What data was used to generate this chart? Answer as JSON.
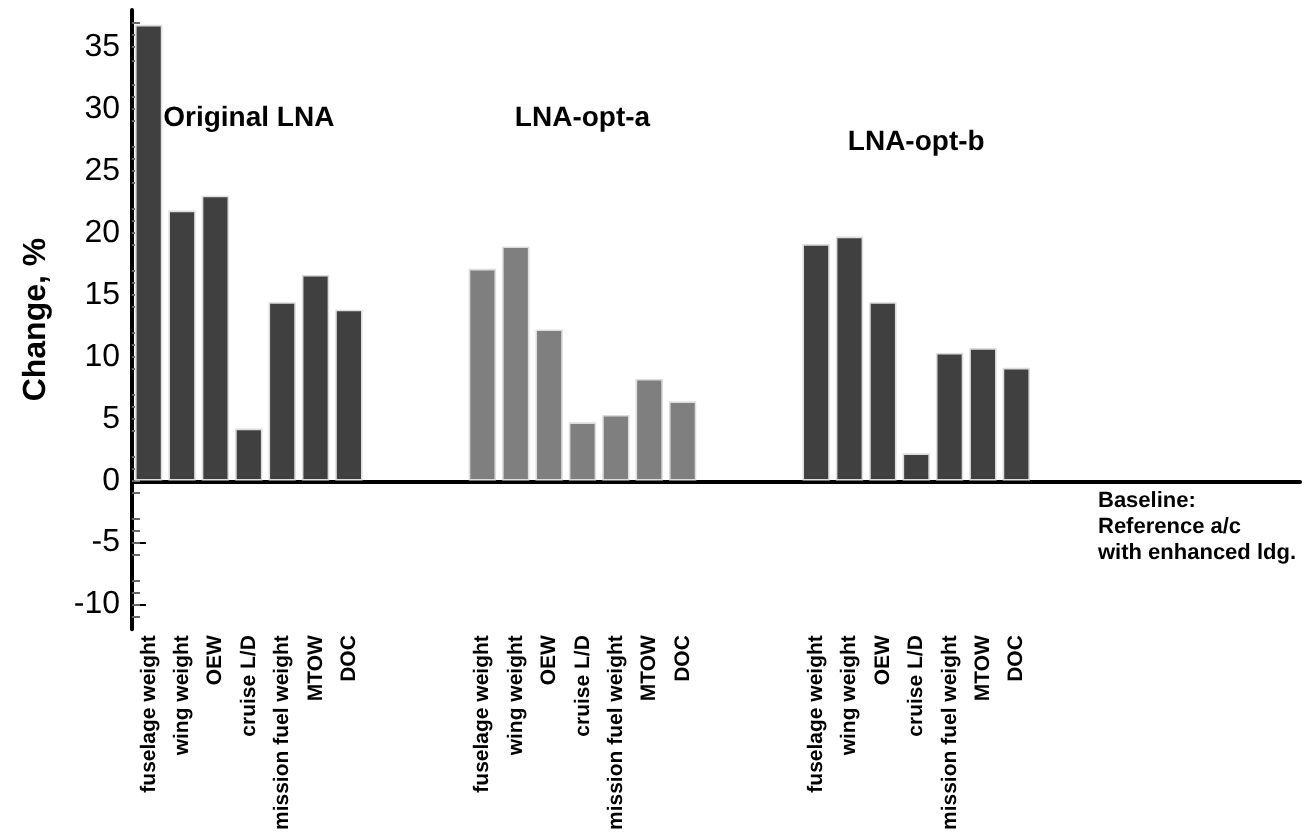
{
  "chart_data": {
    "type": "bar",
    "ylabel": "Change, %",
    "categories": [
      "fuselage weight",
      "wing weight",
      "OEW",
      "cruise L/D",
      "mission fuel weight",
      "MTOW",
      "DOC",
      null,
      null,
      null,
      "fuselage weight",
      "wing weight",
      "OEW",
      "cruise L/D",
      "mission fuel weight",
      "MTOW",
      "DOC",
      null,
      null,
      null,
      "fuselage weight",
      "wing weight",
      "OEW",
      "cruise L/D",
      "mission fuel weight",
      "MTOW",
      "DOC",
      null,
      null,
      null,
      null,
      null,
      null,
      null,
      null
    ],
    "values": [
      36.8,
      21.8,
      23.0,
      4.2,
      14.4,
      16.6,
      13.8,
      null,
      null,
      null,
      17.1,
      18.9,
      12.2,
      4.7,
      5.3,
      8.2,
      6.4,
      null,
      null,
      null,
      19.1,
      19.7,
      14.4,
      2.2,
      10.3,
      10.7,
      9.1,
      null,
      null,
      null,
      null,
      null,
      null,
      null,
      null
    ],
    "colors": [
      "#404040",
      "#404040",
      "#404040",
      "#404040",
      "#404040",
      "#404040",
      "#404040",
      null,
      null,
      null,
      "#7f7f7f",
      "#7f7f7f",
      "#7f7f7f",
      "#7f7f7f",
      "#7f7f7f",
      "#7f7f7f",
      "#7f7f7f",
      null,
      null,
      null,
      "#404040",
      "#404040",
      "#404040",
      "#404040",
      "#404040",
      "#404040",
      "#404040",
      null,
      null,
      null,
      null,
      null,
      null,
      null,
      null
    ],
    "annotations": [
      "Original LNA",
      "LNA-opt-a",
      "LNA-opt-b",
      "Baseline:\nReference a/c\nwith enhanced ldg."
    ],
    "ylim": [
      -12,
      38
    ],
    "yticks": [
      -10,
      -5,
      0,
      5,
      10,
      15,
      20,
      25,
      30,
      35
    ]
  }
}
